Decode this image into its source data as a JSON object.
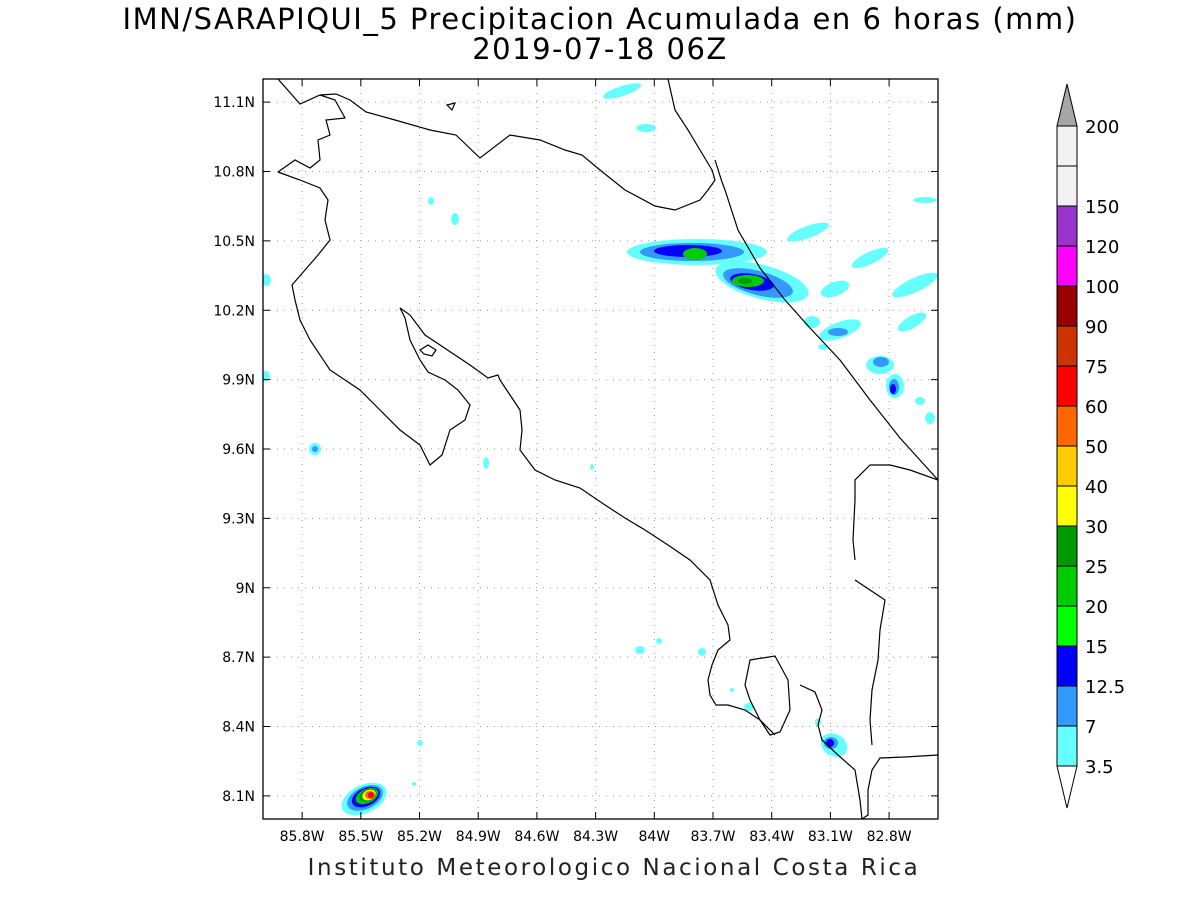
{
  "title": {
    "line1": "IMN/SARAPIQUI_5 Precipitacion Acumulada en 6 horas (mm)",
    "line2": "2019-07-18 06Z"
  },
  "footer": "Instituto Meteorologico Nacional Costa Rica",
  "map": {
    "lon_range": [
      -86.0,
      -82.55
    ],
    "lat_range": [
      8.0,
      11.2
    ],
    "lat_ticks": [
      {
        "value": 11.1,
        "label": "11.1N"
      },
      {
        "value": 10.8,
        "label": "10.8N"
      },
      {
        "value": 10.5,
        "label": "10.5N"
      },
      {
        "value": 10.2,
        "label": "10.2N"
      },
      {
        "value": 9.9,
        "label": "9.9N"
      },
      {
        "value": 9.6,
        "label": "9.6N"
      },
      {
        "value": 9.3,
        "label": "9.3N"
      },
      {
        "value": 9.0,
        "label": "9N"
      },
      {
        "value": 8.7,
        "label": "8.7N"
      },
      {
        "value": 8.4,
        "label": "8.4N"
      },
      {
        "value": 8.1,
        "label": "8.1N"
      }
    ],
    "lon_ticks": [
      {
        "value": -85.8,
        "label": "85.8W"
      },
      {
        "value": -85.5,
        "label": "85.5W"
      },
      {
        "value": -85.2,
        "label": "85.2W"
      },
      {
        "value": -84.9,
        "label": "84.9W"
      },
      {
        "value": -84.6,
        "label": "84.6W"
      },
      {
        "value": -84.3,
        "label": "84.3W"
      },
      {
        "value": -84.0,
        "label": "84W"
      },
      {
        "value": -83.7,
        "label": "83.7W"
      },
      {
        "value": -83.4,
        "label": "83.4W"
      },
      {
        "value": -83.1,
        "label": "83.1W"
      },
      {
        "value": -82.8,
        "label": "82.8W"
      }
    ],
    "grid": "dotted"
  },
  "colorbar": {
    "levels": [
      {
        "label": "3.5",
        "color": "#66ffff"
      },
      {
        "label": "7",
        "color": "#3399ff"
      },
      {
        "label": "12.5",
        "color": "#0000ff"
      },
      {
        "label": "15",
        "color": "#00ff00"
      },
      {
        "label": "20",
        "color": "#00cc00"
      },
      {
        "label": "25",
        "color": "#009900"
      },
      {
        "label": "30",
        "color": "#ffff00"
      },
      {
        "label": "40",
        "color": "#ffcc00"
      },
      {
        "label": "50",
        "color": "#ff6600"
      },
      {
        "label": "60",
        "color": "#ff0000"
      },
      {
        "label": "75",
        "color": "#cc3300"
      },
      {
        "label": "90",
        "color": "#990000"
      },
      {
        "label": "100",
        "color": "#ff00ff"
      },
      {
        "label": "120",
        "color": "#9933cc"
      },
      {
        "label": "150",
        "color": "#f2f2f2"
      },
      {
        "label": "200",
        "color": "#a6a6a6"
      }
    ]
  },
  "colors": {
    "coast": "#000000",
    "grid": "#999999",
    "frame": "#000000"
  }
}
